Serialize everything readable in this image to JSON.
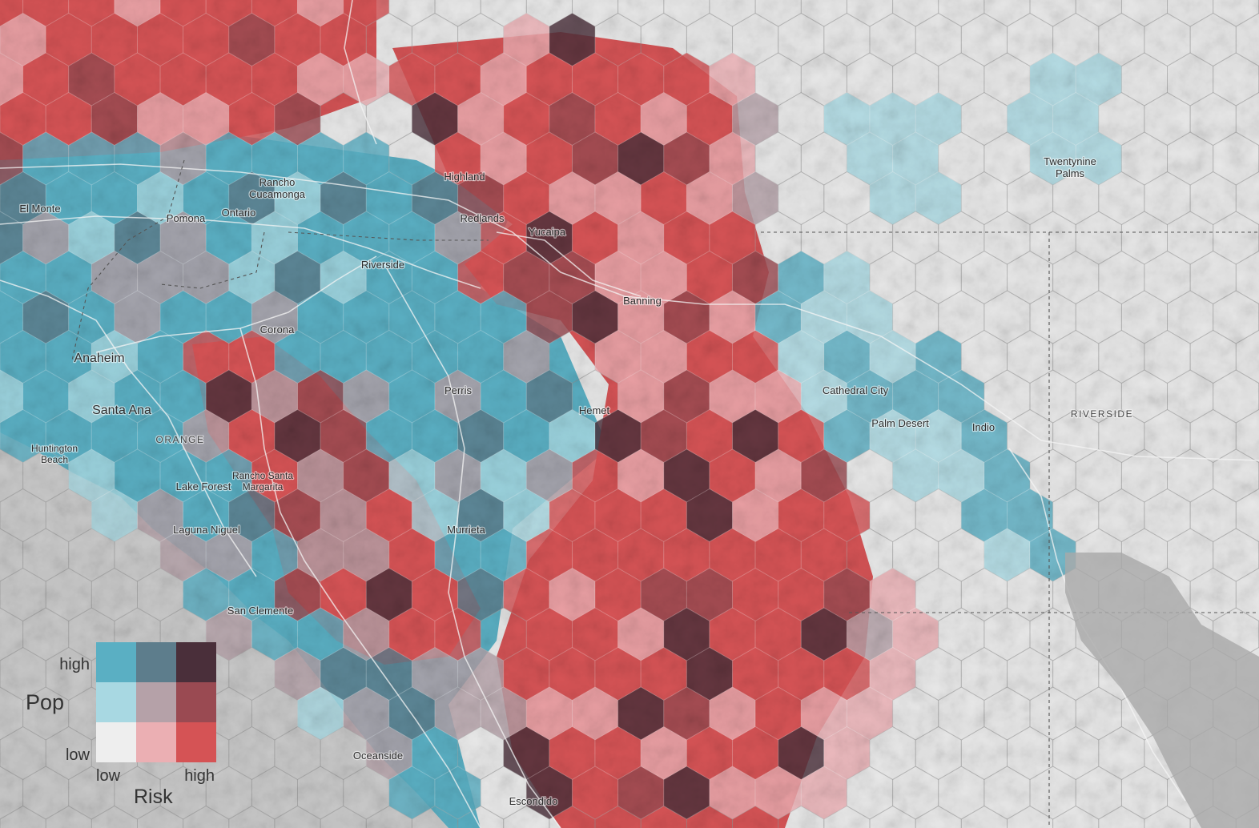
{
  "map": {
    "places": [
      {
        "name": "El Monte"
      },
      {
        "name": "Pomona"
      },
      {
        "name": "Ontario"
      },
      {
        "name": "Rancho\nCucamonga"
      },
      {
        "name": "Highland"
      },
      {
        "name": "Redlands"
      },
      {
        "name": "Yucaipa"
      },
      {
        "name": "Riverside"
      },
      {
        "name": "Banning"
      },
      {
        "name": "Corona"
      },
      {
        "name": "Anaheim"
      },
      {
        "name": "Santa Ana"
      },
      {
        "name": "ORANGE"
      },
      {
        "name": "Huntington\nBeach"
      },
      {
        "name": "Perris"
      },
      {
        "name": "Hemet"
      },
      {
        "name": "Rancho Santa\nMargarita"
      },
      {
        "name": "Lake Forest"
      },
      {
        "name": "Laguna Niguel"
      },
      {
        "name": "Murrieta"
      },
      {
        "name": "San Clemente"
      },
      {
        "name": "Oceanside"
      },
      {
        "name": "Escondido"
      },
      {
        "name": "Cathedral City"
      },
      {
        "name": "Palm Desert"
      },
      {
        "name": "Indio"
      },
      {
        "name": "Twentynine\nPalms"
      },
      {
        "name": "RIVERSIDE"
      }
    ]
  },
  "legend": {
    "pop_label": "Pop",
    "risk_label": "Risk",
    "high_label": "high",
    "low_label": "low",
    "risk_low_label": "low",
    "risk_high_label": "high",
    "colors": {
      "pop_high_risk_low": "#5aafc3",
      "pop_high_risk_mid": "#5d7d8c",
      "pop_high_risk_high": "#4a2f3a",
      "pop_mid_risk_low": "#a8d8e2",
      "pop_mid_risk_mid": "#b5a1a8",
      "pop_mid_risk_high": "#9a4a52",
      "pop_low_risk_low": "#eeeeee",
      "pop_low_risk_mid": "#ebafb3",
      "pop_low_risk_high": "#d55355"
    }
  },
  "colors": {
    "ocean": "#c9c9c9",
    "desert": "#e9e9e9",
    "road": "#ffffff",
    "boundary": "#555555"
  }
}
